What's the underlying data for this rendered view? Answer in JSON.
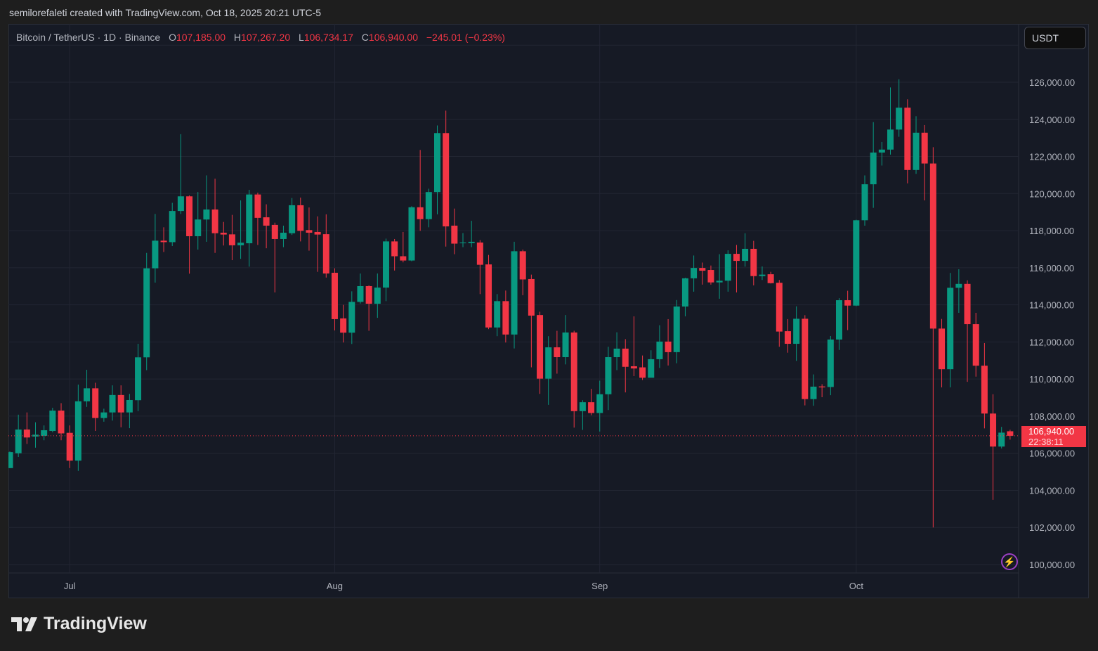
{
  "credit": "semilorefaleti created with TradingView.com, Oct 18, 2025 20:21 UTC-5",
  "legend": {
    "symbol": "Bitcoin / TetherUS · 1D · Binance",
    "o_label": "O",
    "o": "107,185.00",
    "h_label": "H",
    "h": "107,267.20",
    "l_label": "L",
    "l": "106,734.17",
    "c_label": "C",
    "c": "106,940.00",
    "change": "−245.01 (−0.23%)"
  },
  "currency_button": "USDT",
  "last_price": {
    "value": "106,940.00",
    "countdown": "22:38:11"
  },
  "brand": "TradingView",
  "icons": {
    "alert": "lightning-icon",
    "logo": "tradingview-logo-icon"
  },
  "colors": {
    "up": "#089981",
    "down": "#f23645",
    "grid": "#222633",
    "axis_text": "#b2b5be"
  },
  "chart_data": {
    "type": "candlestick",
    "title": "Bitcoin / TetherUS · 1D · Binance",
    "ylabel": "USDT",
    "ylim": [
      100000,
      126000
    ],
    "yticks": [
      "100,000.00",
      "102,000.00",
      "104,000.00",
      "106,000.00",
      "108,000.00",
      "110,000.00",
      "112,000.00",
      "114,000.00",
      "116,000.00",
      "118,000.00",
      "120,000.00",
      "122,000.00",
      "124,000.00",
      "126,000.00"
    ],
    "ytick_values": [
      100000,
      102000,
      104000,
      106000,
      108000,
      110000,
      112000,
      114000,
      116000,
      118000,
      120000,
      122000,
      124000,
      126000
    ],
    "xticks": [
      {
        "label": "Jul",
        "candle": 7
      },
      {
        "label": "Aug",
        "candle": 38
      },
      {
        "label": "Sep",
        "candle": 69
      },
      {
        "label": "Oct",
        "candle": 99
      }
    ],
    "last_close": 106940,
    "ohlc_fields": [
      "open",
      "high",
      "low",
      "close"
    ],
    "candles": [
      [
        105200,
        106100,
        105200,
        106060
      ],
      [
        106000,
        108080,
        105800,
        107280
      ],
      [
        107280,
        108200,
        106500,
        106850
      ],
      [
        106900,
        107670,
        106300,
        107000
      ],
      [
        106940,
        107500,
        106700,
        107240
      ],
      [
        107200,
        108450,
        107130,
        108300
      ],
      [
        108300,
        108700,
        106700,
        107070
      ],
      [
        107100,
        107500,
        105200,
        105600
      ],
      [
        105600,
        109700,
        105050,
        108800
      ],
      [
        108800,
        110500,
        108500,
        109500
      ],
      [
        109500,
        109800,
        107200,
        107900
      ],
      [
        107900,
        108400,
        107700,
        108200
      ],
      [
        108200,
        109660,
        107760,
        109140
      ],
      [
        109140,
        109660,
        107400,
        108200
      ],
      [
        108200,
        109200,
        107350,
        108870
      ],
      [
        108860,
        111900,
        108270,
        111170
      ],
      [
        111170,
        116800,
        110480,
        115970
      ],
      [
        115970,
        118900,
        115200,
        117460
      ],
      [
        117460,
        118180,
        116850,
        117380
      ],
      [
        117380,
        119500,
        117170,
        119060
      ],
      [
        119060,
        123200,
        118900,
        119850
      ],
      [
        119850,
        119900,
        115680,
        117700
      ],
      [
        117700,
        120080,
        116980,
        118600
      ],
      [
        118600,
        120980,
        117400,
        119140
      ],
      [
        119140,
        120800,
        116800,
        117860
      ],
      [
        117890,
        118470,
        117200,
        117790
      ],
      [
        117800,
        118850,
        116410,
        117210
      ],
      [
        117210,
        119630,
        116480,
        117350
      ],
      [
        117320,
        120200,
        116060,
        119950
      ],
      [
        119950,
        120050,
        117230,
        118690
      ],
      [
        118720,
        119420,
        117050,
        118270
      ],
      [
        118310,
        118430,
        114670,
        117550
      ],
      [
        117550,
        118270,
        117110,
        117890
      ],
      [
        117860,
        119760,
        117770,
        119370
      ],
      [
        119370,
        119780,
        117420,
        117990
      ],
      [
        118030,
        119250,
        116920,
        117890
      ],
      [
        117930,
        118770,
        115780,
        117790
      ],
      [
        117810,
        118880,
        115470,
        115690
      ],
      [
        115730,
        115970,
        112620,
        113230
      ],
      [
        113270,
        114000,
        111970,
        112500
      ],
      [
        112500,
        114730,
        111890,
        114160
      ],
      [
        114160,
        115690,
        114070,
        115010
      ],
      [
        115010,
        115050,
        112600,
        114060
      ],
      [
        114060,
        115690,
        113300,
        114930
      ],
      [
        114930,
        117570,
        114200,
        117420
      ],
      [
        117420,
        117550,
        115850,
        116620
      ],
      [
        116620,
        117930,
        116290,
        116390
      ],
      [
        116390,
        119320,
        116350,
        119260
      ],
      [
        119260,
        122350,
        117990,
        118620
      ],
      [
        118620,
        120260,
        118180,
        120080
      ],
      [
        120080,
        123670,
        118880,
        123260
      ],
      [
        123260,
        124470,
        117140,
        118230
      ],
      [
        118270,
        119190,
        116730,
        117300
      ],
      [
        117320,
        117870,
        117110,
        117360
      ],
      [
        117330,
        118530,
        117110,
        117400
      ],
      [
        117360,
        117490,
        114580,
        116160
      ],
      [
        116180,
        116690,
        112690,
        112780
      ],
      [
        112780,
        114580,
        112310,
        114200
      ],
      [
        114200,
        114770,
        111970,
        112400
      ],
      [
        112400,
        117400,
        111650,
        116890
      ],
      [
        116890,
        116980,
        114520,
        115370
      ],
      [
        115390,
        115630,
        110630,
        113420
      ],
      [
        113450,
        113630,
        109200,
        110020
      ],
      [
        110020,
        112310,
        108610,
        111710
      ],
      [
        111710,
        112600,
        110290,
        111180
      ],
      [
        111180,
        113450,
        110790,
        112510
      ],
      [
        112510,
        112600,
        107380,
        108270
      ],
      [
        108270,
        108860,
        107260,
        108750
      ],
      [
        108750,
        109470,
        108050,
        108170
      ],
      [
        108170,
        109910,
        107170,
        109180
      ],
      [
        109180,
        111740,
        108330,
        111180
      ],
      [
        111180,
        112520,
        110480,
        111640
      ],
      [
        111640,
        112150,
        109280,
        110660
      ],
      [
        110690,
        113380,
        110160,
        110570
      ],
      [
        110630,
        111270,
        109950,
        110070
      ],
      [
        110070,
        111550,
        110100,
        111070
      ],
      [
        111070,
        112900,
        110600,
        112020
      ],
      [
        112020,
        113230,
        110730,
        111450
      ],
      [
        111450,
        114260,
        110850,
        113910
      ],
      [
        113910,
        115460,
        113380,
        115430
      ],
      [
        115430,
        116660,
        114710,
        115990
      ],
      [
        115990,
        116280,
        115090,
        115840
      ],
      [
        115880,
        116120,
        115090,
        115210
      ],
      [
        115210,
        116730,
        114330,
        115300
      ],
      [
        115300,
        116940,
        114710,
        116750
      ],
      [
        116750,
        117230,
        114670,
        116370
      ],
      [
        116370,
        117860,
        116060,
        117020
      ],
      [
        117020,
        117450,
        115050,
        115550
      ],
      [
        115550,
        116070,
        115340,
        115630
      ],
      [
        115650,
        115780,
        115150,
        115170
      ],
      [
        115190,
        115340,
        111740,
        112560
      ],
      [
        112580,
        113230,
        111420,
        111900
      ],
      [
        111900,
        113920,
        110980,
        113250
      ],
      [
        113250,
        113440,
        108580,
        108920
      ],
      [
        108920,
        110250,
        108560,
        109590
      ],
      [
        109600,
        109720,
        109020,
        109550
      ],
      [
        109570,
        112320,
        109130,
        112130
      ],
      [
        112130,
        114360,
        111570,
        114250
      ],
      [
        114250,
        114760,
        112640,
        113960
      ],
      [
        113960,
        118590,
        113930,
        118560
      ],
      [
        118560,
        120980,
        118270,
        120500
      ],
      [
        120500,
        123850,
        119230,
        122210
      ],
      [
        122210,
        122780,
        121510,
        122370
      ],
      [
        122370,
        125720,
        122100,
        123450
      ],
      [
        123450,
        126160,
        123060,
        124630
      ],
      [
        124630,
        125080,
        120550,
        121270
      ],
      [
        121270,
        124170,
        121060,
        123280
      ],
      [
        123280,
        123690,
        119630,
        121620
      ],
      [
        121620,
        122500,
        102000,
        112720
      ],
      [
        112720,
        113240,
        109550,
        110530
      ],
      [
        110530,
        115720,
        109550,
        114920
      ],
      [
        114920,
        115920,
        113570,
        115130
      ],
      [
        115130,
        115320,
        109850,
        112960
      ],
      [
        112960,
        113570,
        110130,
        110720
      ],
      [
        110720,
        111940,
        107340,
        108140
      ],
      [
        108140,
        109180,
        103490,
        106360
      ],
      [
        106360,
        107420,
        106260,
        107110
      ],
      [
        107185,
        107267.2,
        106734.17,
        106940
      ]
    ]
  }
}
